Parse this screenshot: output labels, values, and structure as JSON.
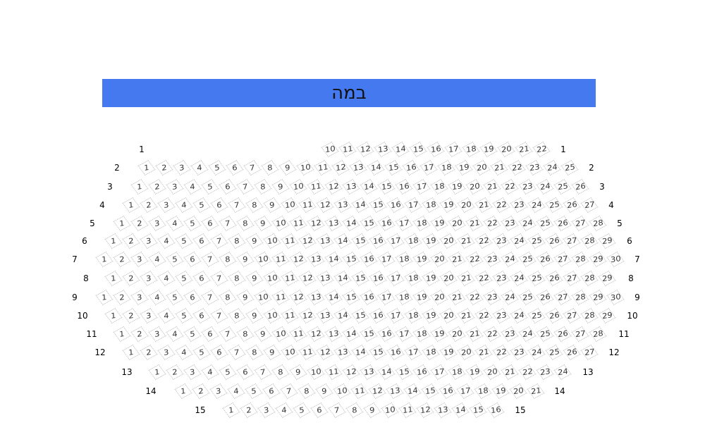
{
  "stage": {
    "label": "במה",
    "color": "#4479ef"
  },
  "rows": [
    {
      "label": "1",
      "first": 10,
      "last": 22
    },
    {
      "label": "2",
      "first": 1,
      "last": 25
    },
    {
      "label": "3",
      "first": 1,
      "last": 26
    },
    {
      "label": "4",
      "first": 1,
      "last": 27
    },
    {
      "label": "5",
      "first": 1,
      "last": 28
    },
    {
      "label": "6",
      "first": 1,
      "last": 29
    },
    {
      "label": "7",
      "first": 1,
      "last": 30
    },
    {
      "label": "8",
      "first": 1,
      "last": 29
    },
    {
      "label": "9",
      "first": 1,
      "last": 30
    },
    {
      "label": "10",
      "first": 1,
      "last": 29
    },
    {
      "label": "11",
      "first": 1,
      "last": 28
    },
    {
      "label": "12",
      "first": 1,
      "last": 27
    },
    {
      "label": "13",
      "first": 1,
      "last": 24
    },
    {
      "label": "14",
      "first": 1,
      "last": 21
    },
    {
      "label": "15",
      "first": 1,
      "last": 16
    }
  ]
}
